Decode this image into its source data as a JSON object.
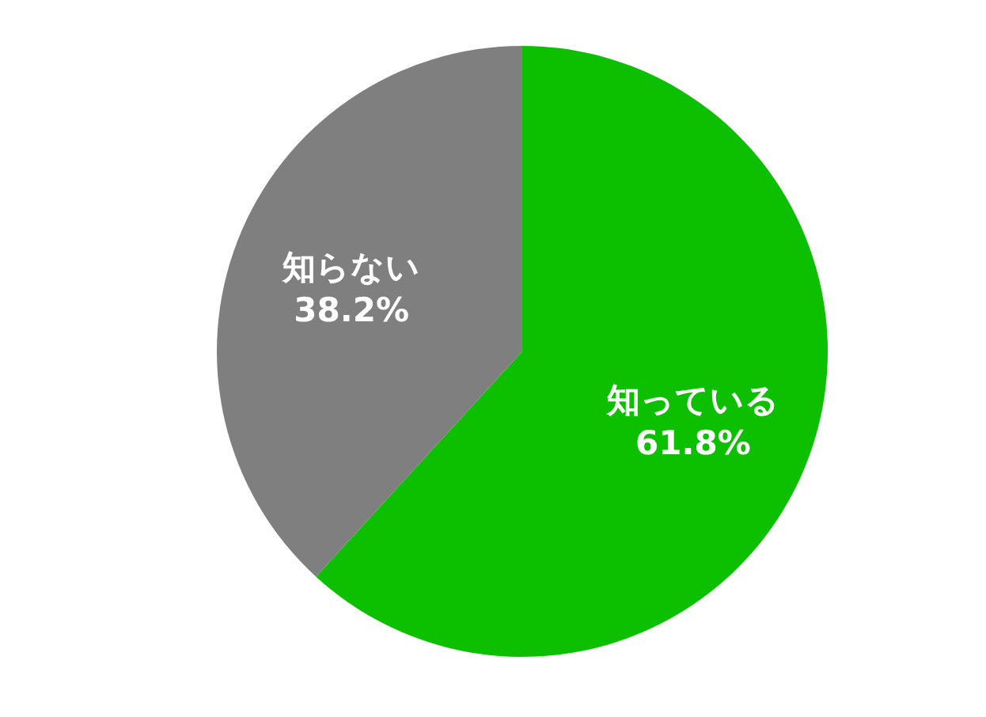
{
  "chart_data": {
    "type": "pie",
    "categories": [
      "知っている",
      "知らない"
    ],
    "values": [
      61.8,
      38.2
    ],
    "colors": [
      "#0cc000",
      "#7f7f7f"
    ],
    "value_labels": [
      "61.8%",
      "38.2%"
    ]
  }
}
